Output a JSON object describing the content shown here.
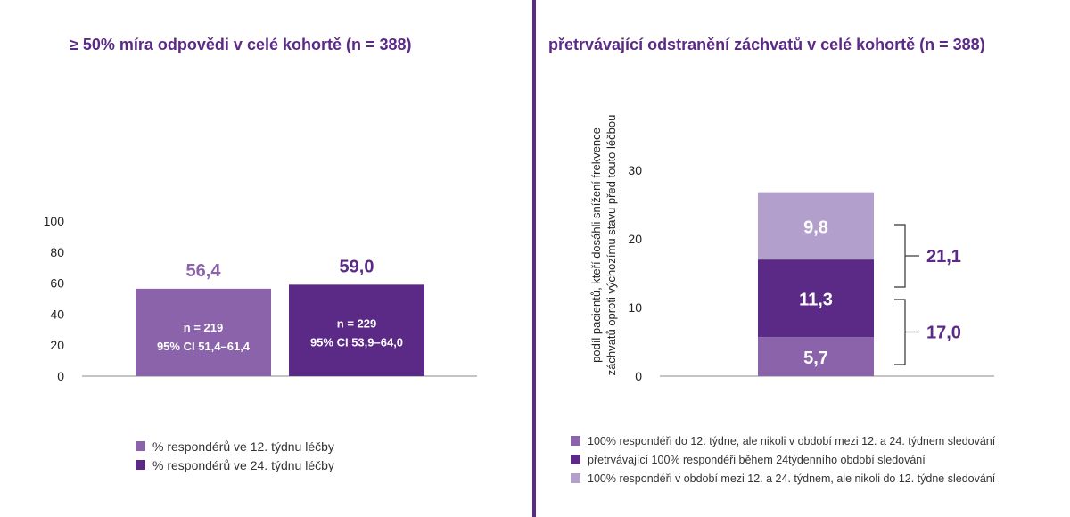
{
  "colors": {
    "light": "#b39fcb",
    "medium": "#8a63aa",
    "dark": "#5b2a86",
    "divider": "#5b2a86"
  },
  "chart_data": [
    {
      "type": "bar",
      "title": "≥ 50% míra odpovědi v celé kohortě (n = 388)",
      "ylim": [
        0,
        100
      ],
      "yticks": [
        "0",
        "20",
        "40",
        "60",
        "80",
        "100"
      ],
      "ytick_values": [
        0,
        20,
        40,
        60,
        80,
        100
      ],
      "grid": false,
      "legend_position": "bottom",
      "series": [
        {
          "name": "% respondérů ve 12. týdnu léčby",
          "value": 56.4,
          "label": "56,4",
          "n_label": "n = 219",
          "ci_label": "95% CI 51,4–61,4",
          "color": "#8a63aa"
        },
        {
          "name": "% respondérů ve 24. týdnu léčby",
          "value": 59.0,
          "label": "59,0",
          "n_label": "n = 229",
          "ci_label": "95% CI 53,9–64,0",
          "color": "#5b2a86"
        }
      ]
    },
    {
      "type": "bar",
      "stacked": true,
      "title": "přetrvávající odstranění záchvatů v celé kohortě (n = 388)",
      "ylabel_line1": "podíl pacientů, kteří dosáhli snížení frekvence",
      "ylabel_line2": "záchvatů oproti výchozímu stavu před touto léčbou",
      "ylim": [
        0,
        30
      ],
      "yticks": [
        "0",
        "10",
        "20",
        "30"
      ],
      "ytick_values": [
        0,
        10,
        20,
        30
      ],
      "grid": false,
      "legend_position": "bottom",
      "series": [
        {
          "name": "100% respondéři do 12. týdne, ale nikoli v období mezi 12. a 24. týdnem sledování",
          "value": 5.7,
          "label": "5,7",
          "color": "#8a63aa"
        },
        {
          "name": "přetrvávající 100% respondéři během 24týdenního období sledování",
          "value": 11.3,
          "label": "11,3",
          "color": "#5b2a86"
        },
        {
          "name": "100% respondéři v období mezi 12. a 24. týdnem, ale nikoli do 12. týdne sledování",
          "value": 9.8,
          "label": "9,8",
          "color": "#b39fcb"
        }
      ],
      "brackets": [
        {
          "from": 0,
          "to": 17.0,
          "label": "17,0"
        },
        {
          "from": 11.3,
          "to": 32.4,
          "label": "21,1"
        }
      ]
    }
  ]
}
